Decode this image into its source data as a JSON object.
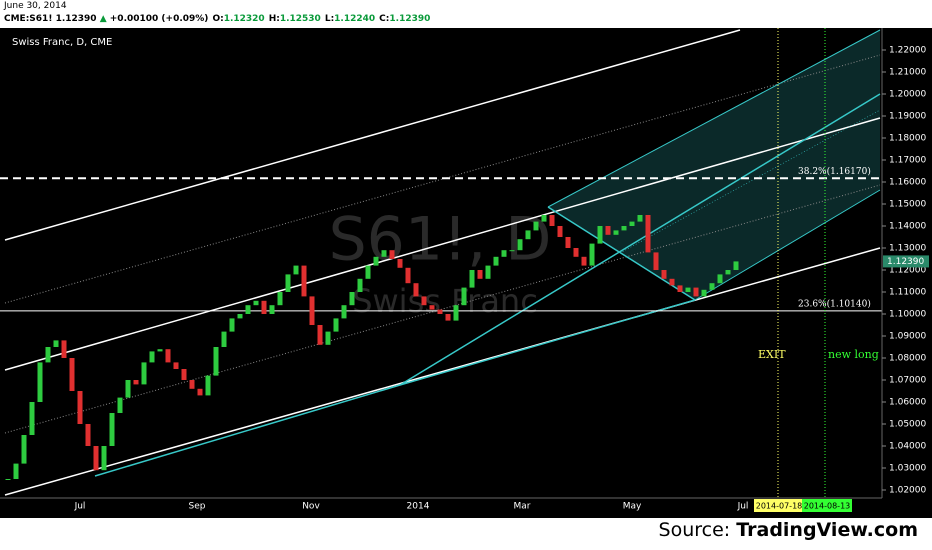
{
  "header": {
    "date": "June 30, 2014",
    "symbol": "CME:S61!",
    "last": "1.12390",
    "arrow": "▲",
    "change": "+0.00100 (+0.09%)",
    "ohlc": [
      {
        "label": "O:",
        "value": "1.12320"
      },
      {
        "label": "H:",
        "value": "1.12530"
      },
      {
        "label": "L:",
        "value": "1.12240"
      },
      {
        "label": "C:",
        "value": "1.12390"
      }
    ]
  },
  "chart_data": {
    "type": "candlestick",
    "title": "Swiss Franc, D, CME",
    "watermark": "S61!, D",
    "watermark_sub": "Swiss Franc",
    "close": [
      1.025,
      1.032,
      1.045,
      1.06,
      1.078,
      1.085,
      1.088,
      1.08,
      1.065,
      1.05,
      1.04,
      1.029,
      1.04,
      1.055,
      1.062,
      1.07,
      1.068,
      1.078,
      1.083,
      1.084,
      1.078,
      1.075,
      1.07,
      1.066,
      1.063,
      1.072,
      1.085,
      1.092,
      1.098,
      1.1,
      1.104,
      1.106,
      1.1,
      1.104,
      1.11,
      1.118,
      1.122,
      1.108,
      1.095,
      1.086,
      1.092,
      1.098,
      1.104,
      1.11,
      1.116,
      1.122,
      1.126,
      1.129,
      1.125,
      1.121,
      1.114,
      1.108,
      1.104,
      1.102,
      1.1,
      1.097,
      1.104,
      1.112,
      1.12,
      1.116,
      1.122,
      1.126,
      1.129,
      1.129,
      1.134,
      1.138,
      1.142,
      1.145,
      1.14,
      1.135,
      1.13,
      1.126,
      1.122,
      1.132,
      1.14,
      1.136,
      1.138,
      1.14,
      1.142,
      1.145,
      1.128,
      1.12,
      1.116,
      1.113,
      1.11,
      1.112,
      1.108,
      1.111,
      1.114,
      1.118,
      1.12,
      1.1239
    ],
    "up_color": "#2ecc40",
    "down_color": "#e03030",
    "ylim": [
      1.01,
      1.23
    ],
    "yticks": [
      {
        "value": 1.02,
        "label": "1.02000"
      },
      {
        "value": 1.03,
        "label": "1.03000"
      },
      {
        "value": 1.04,
        "label": "1.04000"
      },
      {
        "value": 1.05,
        "label": "1.05000"
      },
      {
        "value": 1.06,
        "label": "1.06000"
      },
      {
        "value": 1.07,
        "label": "1.07000"
      },
      {
        "value": 1.08,
        "label": "1.08000"
      },
      {
        "value": 1.09,
        "label": "1.09000"
      },
      {
        "value": 1.1,
        "label": "1.10000"
      },
      {
        "value": 1.11,
        "label": "1.11000"
      },
      {
        "value": 1.12,
        "label": "1.12000"
      },
      {
        "value": 1.13,
        "label": "1.13000"
      },
      {
        "value": 1.14,
        "label": "1.14000"
      },
      {
        "value": 1.15,
        "label": "1.15000"
      },
      {
        "value": 1.16,
        "label": "1.16000"
      },
      {
        "value": 1.17,
        "label": "1.17000"
      },
      {
        "value": 1.18,
        "label": "1.18000"
      },
      {
        "value": 1.19,
        "label": "1.19000"
      },
      {
        "value": 1.2,
        "label": "1.20000"
      },
      {
        "value": 1.21,
        "label": "1.21000"
      },
      {
        "value": 1.22,
        "label": "1.22000"
      }
    ],
    "xticks": [
      "Jul",
      "Sep",
      "Nov",
      "2014",
      "Mar",
      "May",
      "Jul"
    ],
    "levels": [
      {
        "value": 1.1617,
        "label": "38.2%(1.16170)",
        "dashed": true
      },
      {
        "value": 1.1014,
        "label": "23.6%(1.10140)",
        "dashed": false
      }
    ],
    "last_price": {
      "value": 1.1239,
      "label": "1.12390"
    },
    "markers": [
      {
        "label": "EXIT",
        "date": "2014-07-18",
        "color": "#ffff66"
      },
      {
        "label": "new long",
        "date": "2014-08-13",
        "color": "#33ff33"
      }
    ]
  },
  "footer": {
    "prefix": "Source:",
    "site": "TradingView.com"
  }
}
